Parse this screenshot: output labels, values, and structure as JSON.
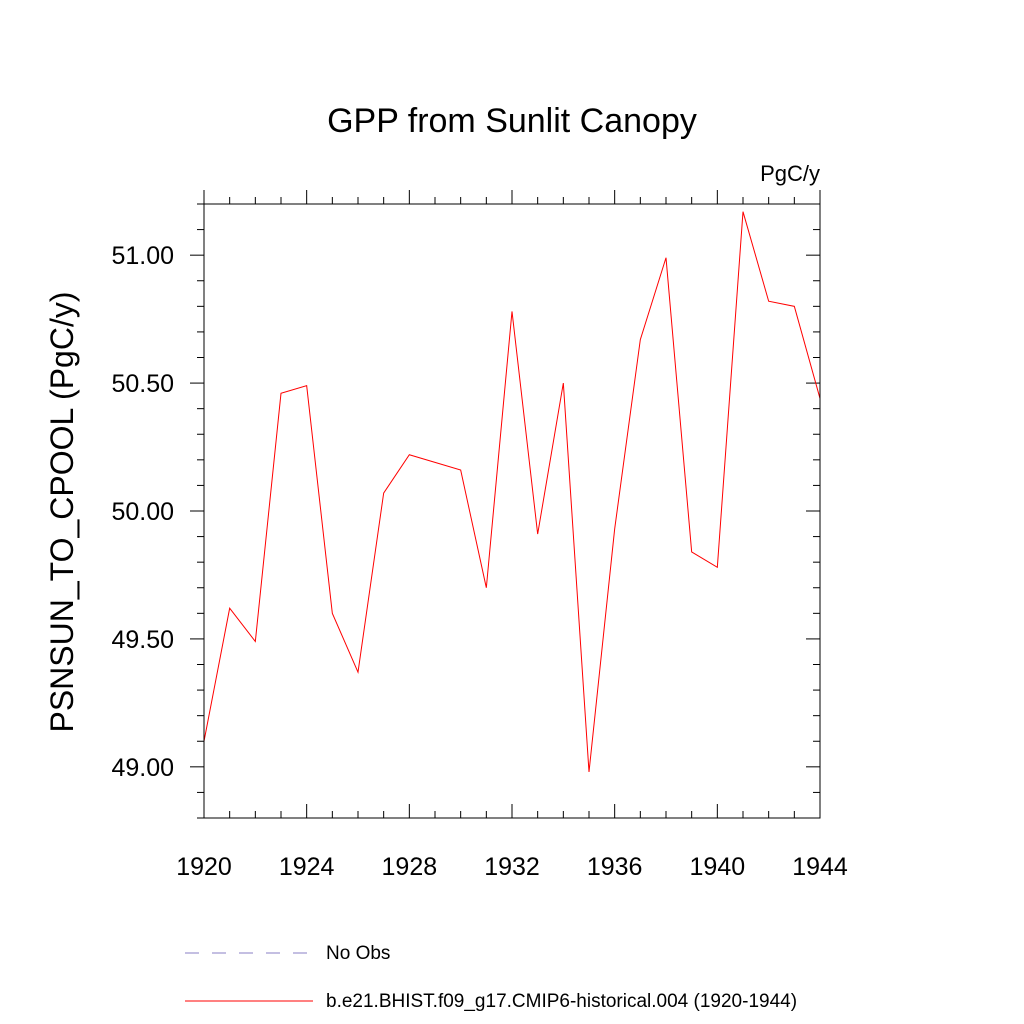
{
  "chart_data": {
    "type": "line",
    "title": "GPP from Sunlit Canopy",
    "units_label": "PgC/y",
    "xlabel": "",
    "ylabel": "PSNSUN_TO_CPOOL  (PgC/y)",
    "xlim": [
      1920,
      1944
    ],
    "ylim": [
      48.8,
      51.2
    ],
    "x_ticks": [
      1920,
      1924,
      1928,
      1932,
      1936,
      1940,
      1944
    ],
    "x_tick_labels": [
      "1920",
      "1924",
      "1928",
      "1932",
      "1936",
      "1940",
      "1944"
    ],
    "y_ticks": [
      49.0,
      49.5,
      50.0,
      50.5,
      51.0
    ],
    "y_tick_labels": [
      "49.00",
      "49.50",
      "50.00",
      "50.50",
      "51.00"
    ],
    "grid": false,
    "series": [
      {
        "name": "b.e21.BHIST.f09_g17.CMIP6-historical.004 (1920-1944)",
        "color": "#ff0000",
        "style": "solid",
        "x": [
          1920,
          1921,
          1922,
          1923,
          1924,
          1925,
          1926,
          1927,
          1928,
          1929,
          1930,
          1931,
          1932,
          1933,
          1934,
          1935,
          1936,
          1937,
          1938,
          1939,
          1940,
          1941,
          1942,
          1943,
          1944
        ],
        "values": [
          49.1,
          49.62,
          49.49,
          50.46,
          50.49,
          49.6,
          49.37,
          50.07,
          50.22,
          50.19,
          50.16,
          49.7,
          50.78,
          49.91,
          50.5,
          48.98,
          49.93,
          50.67,
          50.99,
          49.84,
          49.78,
          51.17,
          50.82,
          50.8,
          50.44
        ]
      }
    ],
    "legend": [
      {
        "label": "No Obs",
        "color": "#8a7fc4",
        "style": "dashed"
      },
      {
        "label": "b.e21.BHIST.f09_g17.CMIP6-historical.004 (1920-1944)",
        "color": "#ff0000",
        "style": "solid"
      }
    ],
    "legend_position": "bottom"
  }
}
